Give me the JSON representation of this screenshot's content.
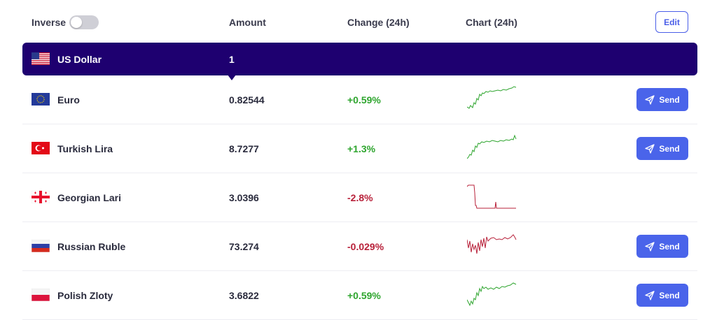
{
  "header": {
    "inverse_label": "Inverse",
    "inverse_on": false,
    "amount_label": "Amount",
    "change_label": "Change (24h)",
    "chart_label": "Chart (24h)",
    "edit_label": "Edit"
  },
  "base": {
    "name": "US Dollar",
    "amount": "1",
    "flag": "us-flag-icon"
  },
  "rows": [
    {
      "name": "Euro",
      "amount": "0.82544",
      "change": "+0.59%",
      "trend": "up",
      "send_label": "Send",
      "flag": "eu-flag-icon"
    },
    {
      "name": "Turkish Lira",
      "amount": "8.7277",
      "change": "+1.3%",
      "trend": "up",
      "send_label": "Send",
      "flag": "tr-flag-icon"
    },
    {
      "name": "Georgian Lari",
      "amount": "3.0396",
      "change": "-2.8%",
      "trend": "down",
      "send_label": "",
      "flag": "ge-flag-icon"
    },
    {
      "name": "Russian Ruble",
      "amount": "73.274",
      "change": "-0.029%",
      "trend": "down",
      "send_label": "Send",
      "flag": "ru-flag-icon"
    },
    {
      "name": "Polish Zloty",
      "amount": "3.6822",
      "change": "+0.59%",
      "trend": "up",
      "send_label": "Send",
      "flag": "pl-flag-icon"
    }
  ],
  "colors": {
    "accent": "#4a64ea",
    "base_row": "#1e0070",
    "positive": "#2ea52e",
    "negative": "#b8213a"
  }
}
